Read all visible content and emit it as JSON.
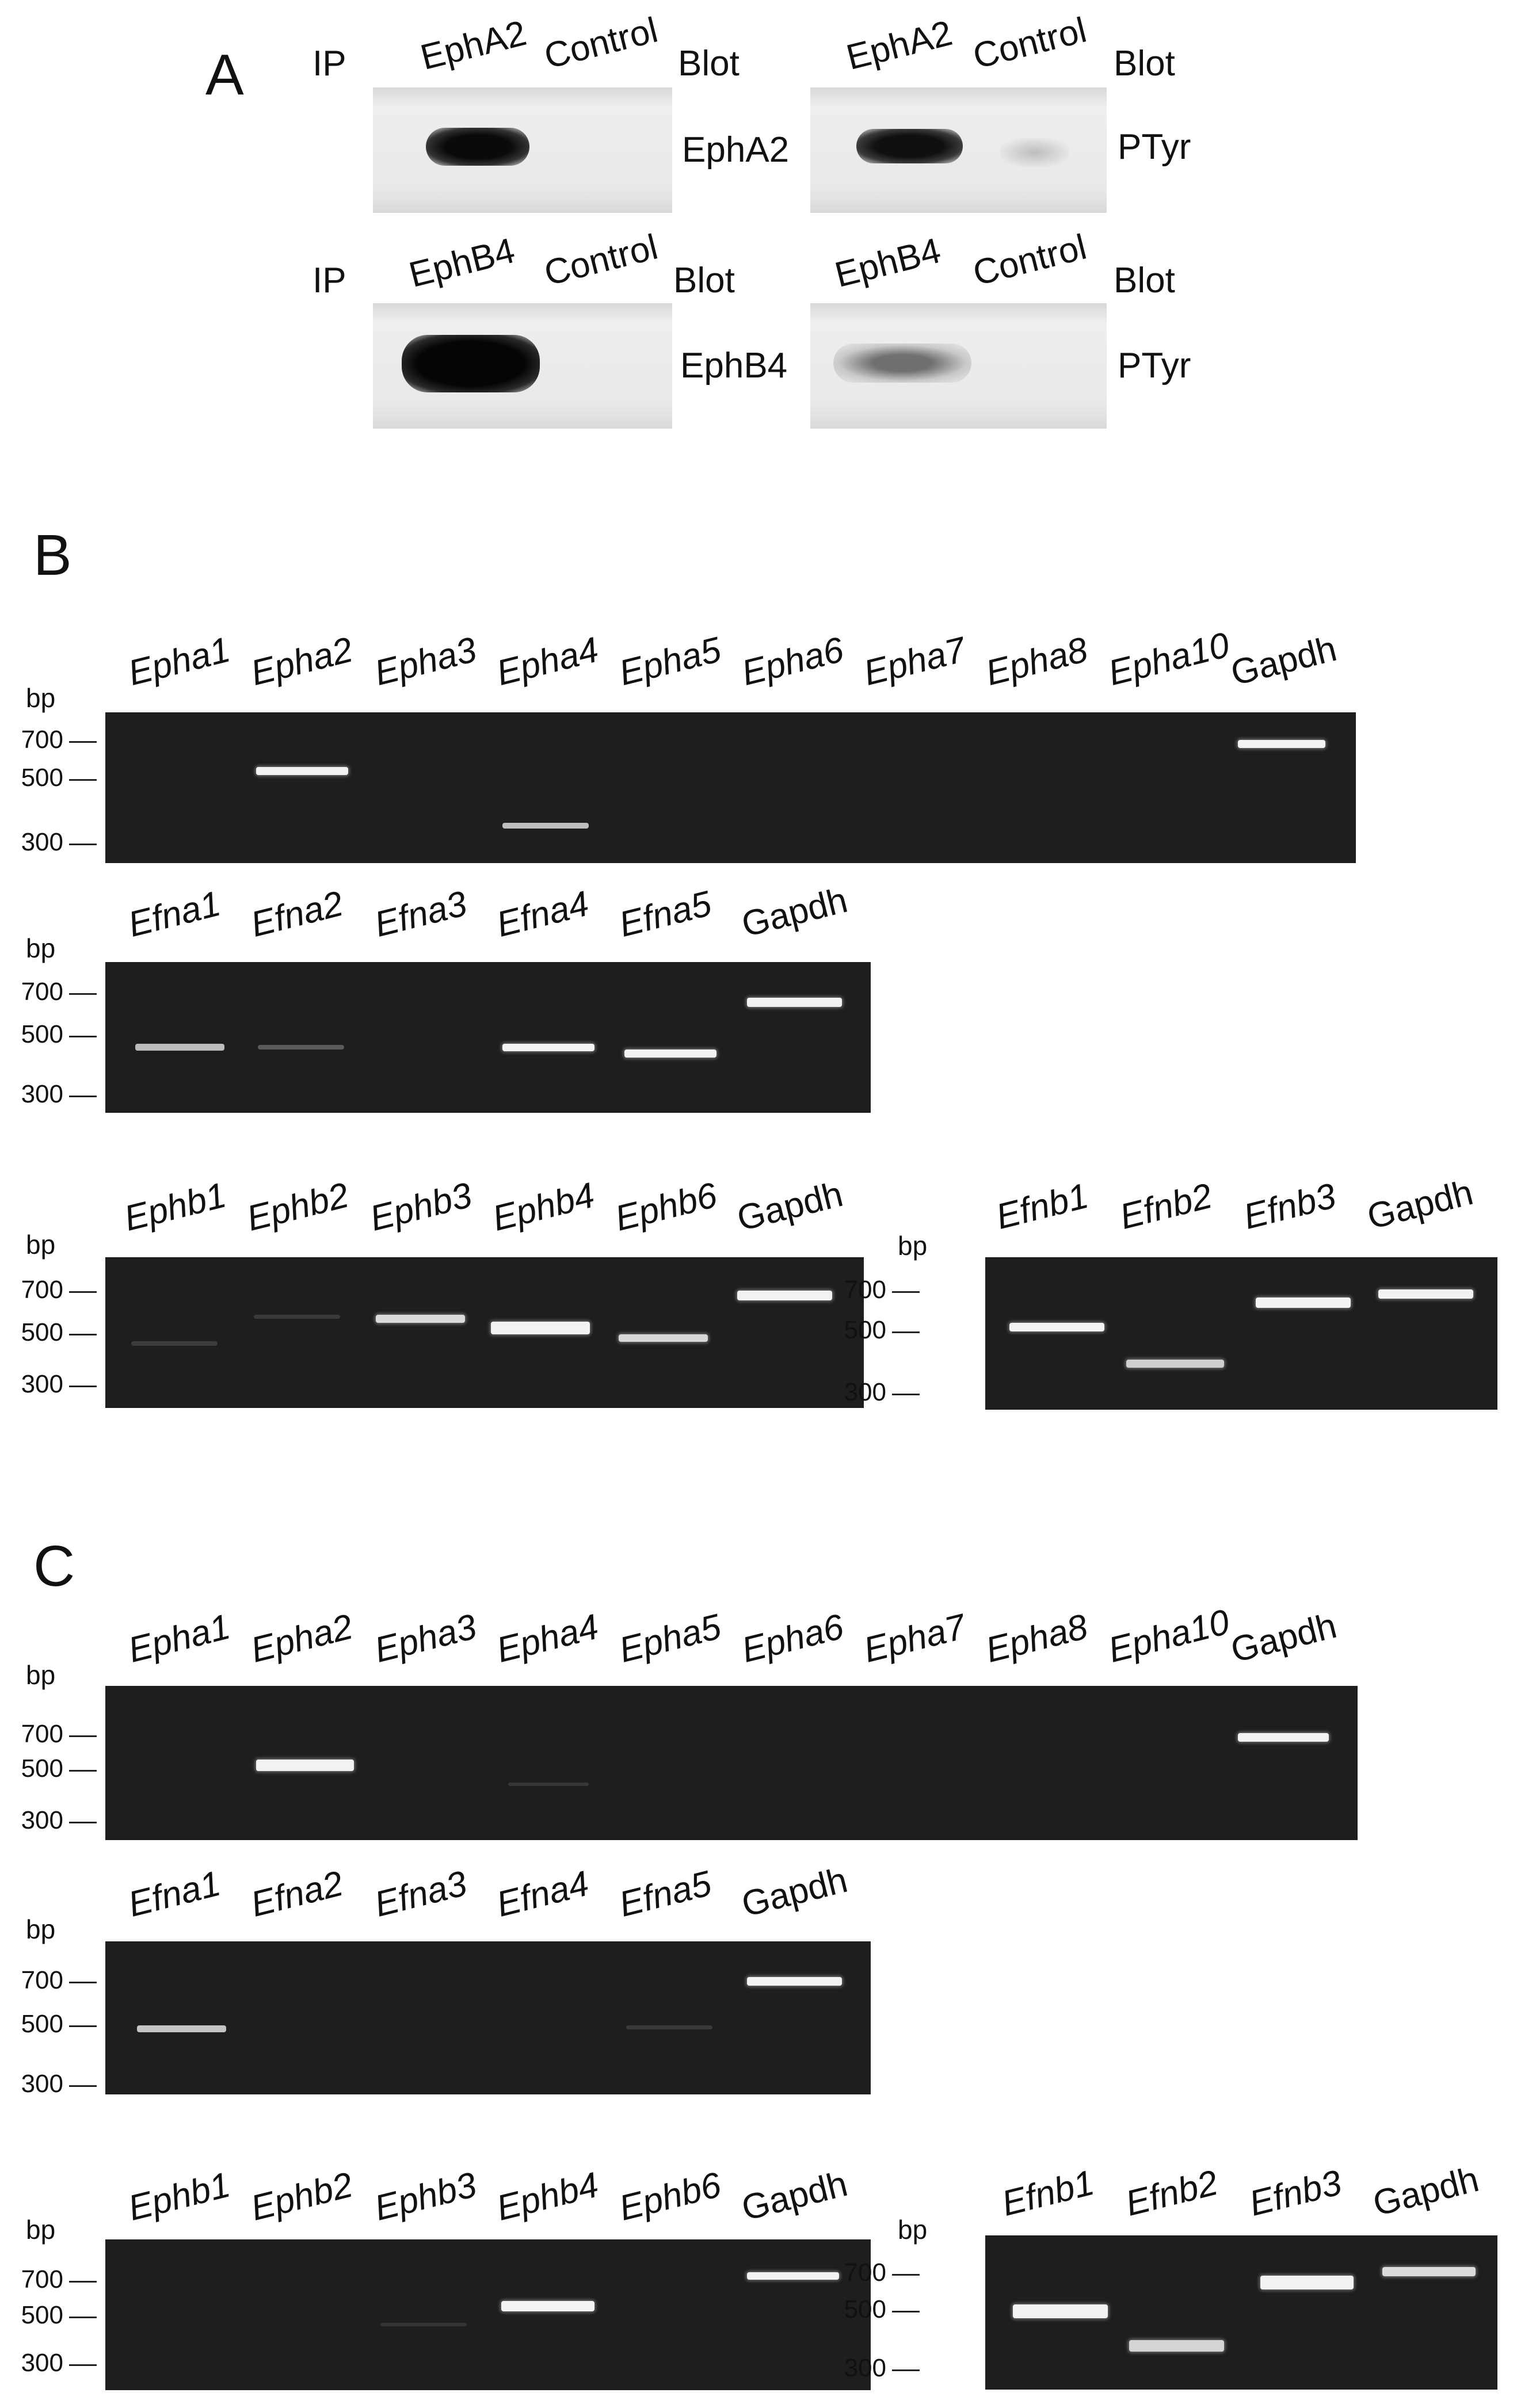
{
  "panelA": {
    "letter": "A",
    "ip_label": "IP",
    "blot_label": "Blot",
    "control_label": "Control",
    "row1": {
      "ip_target": "EphA2",
      "blot_left": "EphA2",
      "blot_right": "PTyr"
    },
    "row2": {
      "ip_target": "EphB4",
      "blot_left": "EphB4",
      "blot_right": "PTyr"
    }
  },
  "panelB": {
    "letter": "B",
    "bp_label": "bp",
    "markers": [
      "700",
      "500",
      "300"
    ],
    "gel1_lanes": [
      "Epha1",
      "Epha2",
      "Epha3",
      "Epha4",
      "Epha5",
      "Epha6",
      "Epha7",
      "Epha8",
      "Epha10",
      "Gapdh"
    ],
    "gel2_lanes": [
      "Efna1",
      "Efna2",
      "Efna3",
      "Efna4",
      "Efna5",
      "Gapdh"
    ],
    "gel3_lanes": [
      "Ephb1",
      "Ephb2",
      "Ephb3",
      "Ephb4",
      "Ephb6",
      "Gapdh"
    ],
    "gel4_lanes": [
      "Efnb1",
      "Efnb2",
      "Efnb3",
      "Gapdh"
    ]
  },
  "panelC": {
    "letter": "C",
    "bp_label": "bp",
    "markers": [
      "700",
      "500",
      "300"
    ],
    "gel1_lanes": [
      "Epha1",
      "Epha2",
      "Epha3",
      "Epha4",
      "Epha5",
      "Epha6",
      "Epha7",
      "Epha8",
      "Epha10",
      "Gapdh"
    ],
    "gel2_lanes": [
      "Efna1",
      "Efna2",
      "Efna3",
      "Efna4",
      "Efna5",
      "Gapdh"
    ],
    "gel3_lanes": [
      "Ephb1",
      "Ephb2",
      "Ephb3",
      "Ephb4",
      "Ephb6",
      "Gapdh"
    ],
    "gel4_lanes": [
      "Efnb1",
      "Efnb2",
      "Efnb3",
      "Gapdh"
    ]
  }
}
